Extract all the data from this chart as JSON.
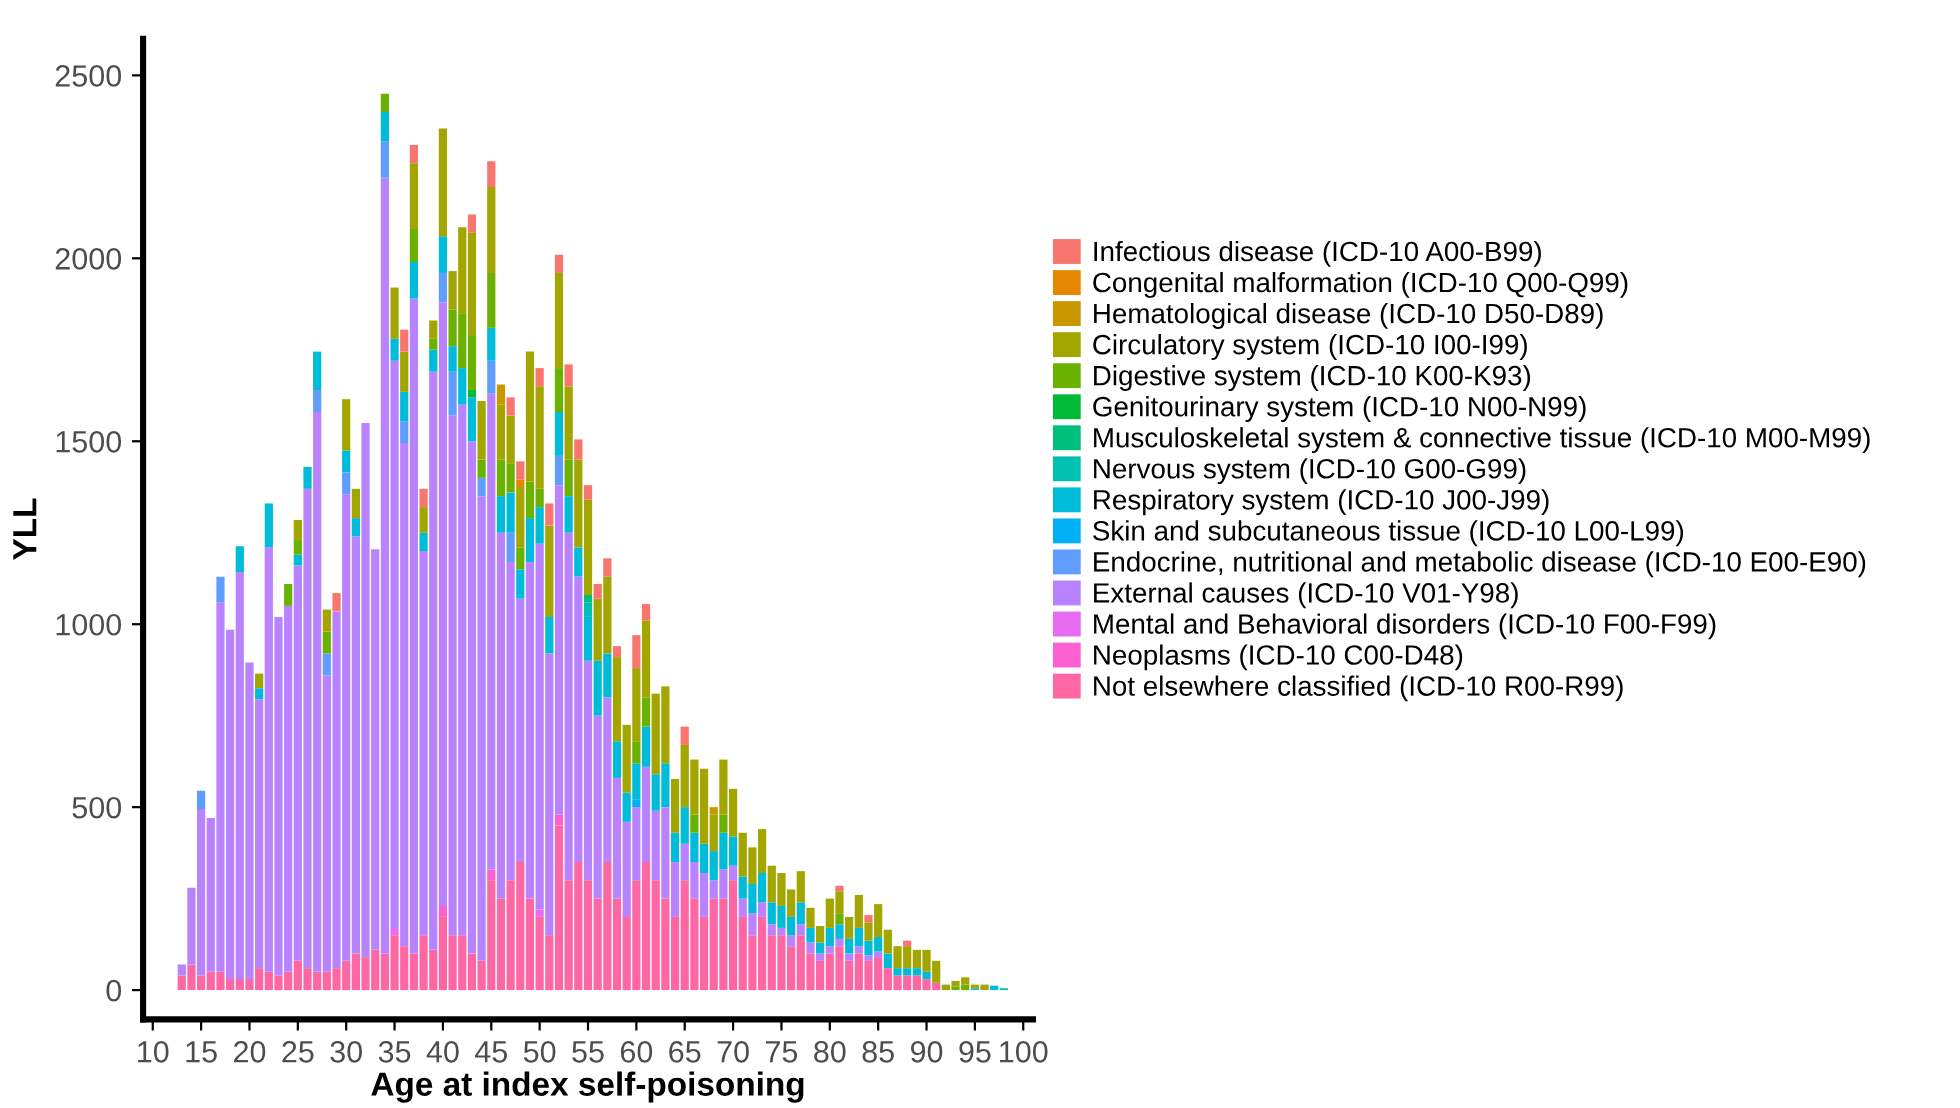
{
  "chart_data": {
    "type": "bar",
    "stacked": true,
    "xlabel": "Age at index self-poisoning",
    "ylabel": "YLL",
    "x": [
      13,
      14,
      15,
      16,
      17,
      18,
      19,
      20,
      21,
      22,
      23,
      24,
      25,
      26,
      27,
      28,
      29,
      30,
      31,
      32,
      33,
      34,
      35,
      36,
      37,
      38,
      39,
      40,
      41,
      42,
      43,
      44,
      45,
      46,
      47,
      48,
      49,
      50,
      51,
      52,
      53,
      54,
      55,
      56,
      57,
      58,
      59,
      60,
      61,
      62,
      63,
      64,
      65,
      66,
      67,
      68,
      69,
      70,
      71,
      72,
      73,
      74,
      75,
      76,
      77,
      78,
      79,
      80,
      81,
      82,
      83,
      84,
      85,
      86,
      87,
      88,
      89,
      90,
      91,
      92,
      93,
      94,
      95,
      96,
      97,
      98
    ],
    "xlim": [
      9,
      101
    ],
    "xticks": [
      10,
      15,
      20,
      25,
      30,
      35,
      40,
      45,
      50,
      55,
      60,
      65,
      70,
      75,
      80,
      85,
      90,
      95,
      100
    ],
    "ylim": [
      -80,
      2600
    ],
    "yticks": [
      0,
      500,
      1000,
      1500,
      2000,
      2500
    ],
    "grid": false,
    "legend": "right",
    "series": [
      {
        "name": "Not elsewhere classified (ICD-10 R00-R99)",
        "color": "#ff67a4",
        "values": [
          40,
          70,
          40,
          50,
          50,
          30,
          30,
          30,
          60,
          50,
          40,
          50,
          80,
          60,
          50,
          50,
          60,
          80,
          100,
          90,
          110,
          100,
          150,
          120,
          100,
          150,
          110,
          200,
          150,
          150,
          100,
          80,
          300,
          250,
          300,
          350,
          250,
          200,
          150,
          450,
          300,
          350,
          300,
          250,
          350,
          250,
          200,
          300,
          350,
          300,
          250,
          200,
          300,
          250,
          200,
          250,
          250,
          300,
          200,
          150,
          200,
          150,
          150,
          120,
          150,
          100,
          80,
          100,
          120,
          80,
          100,
          80,
          90,
          60,
          40,
          40,
          40,
          30,
          20,
          0,
          0,
          0,
          0,
          0,
          0,
          0
        ]
      },
      {
        "name": "Neoplasms (ICD-10 C00-D48)",
        "color": "#fd61d1",
        "values": [
          0,
          0,
          0,
          0,
          0,
          0,
          0,
          0,
          0,
          0,
          0,
          0,
          0,
          0,
          0,
          0,
          0,
          0,
          0,
          0,
          0,
          0,
          0,
          0,
          0,
          0,
          0,
          30,
          0,
          0,
          0,
          0,
          30,
          0,
          0,
          0,
          0,
          0,
          0,
          30,
          0,
          0,
          0,
          0,
          0,
          0,
          0,
          0,
          0,
          0,
          0,
          0,
          0,
          0,
          0,
          0,
          0,
          0,
          0,
          0,
          0,
          0,
          0,
          0,
          0,
          0,
          0,
          0,
          0,
          0,
          0,
          0,
          0,
          0,
          0,
          0,
          0,
          0,
          0,
          0,
          0,
          0,
          0,
          0,
          0,
          0
        ]
      },
      {
        "name": "Mental and Behavioral disorders (ICD-10 F00-F99)",
        "color": "#e76bf3",
        "values": [
          0,
          0,
          0,
          0,
          0,
          0,
          0,
          0,
          0,
          0,
          0,
          0,
          0,
          0,
          0,
          0,
          0,
          0,
          0,
          0,
          0,
          0,
          20,
          0,
          0,
          0,
          0,
          0,
          0,
          0,
          0,
          0,
          0,
          0,
          0,
          0,
          0,
          20,
          0,
          0,
          0,
          0,
          0,
          0,
          0,
          0,
          0,
          0,
          0,
          0,
          0,
          0,
          0,
          0,
          0,
          0,
          0,
          0,
          0,
          0,
          0,
          0,
          0,
          0,
          0,
          0,
          0,
          0,
          0,
          0,
          0,
          0,
          0,
          0,
          0,
          0,
          0,
          0,
          0,
          0,
          0,
          0,
          0,
          0,
          0,
          0
        ]
      },
      {
        "name": "External causes (ICD-10 V01-Y98)",
        "color": "#b983ff",
        "values": [
          30,
          210,
          455,
          420,
          1010,
          955,
          1113,
          865,
          735,
          1160,
          980,
          1000,
          1080,
          1310,
          1530,
          810,
          975,
          1275,
          1140,
          1460,
          1095,
          2120,
          1550,
          1375,
          1790,
          1050,
          1580,
          1650,
          1420,
          1450,
          1400,
          1270,
          1300,
          1000,
          870,
          720,
          920,
          1000,
          770,
          900,
          950,
          780,
          600,
          500,
          450,
          330,
          260,
          200,
          260,
          190,
          250,
          150,
          100,
          100,
          120,
          50,
          80,
          40,
          50,
          60,
          40,
          30,
          20,
          30,
          30,
          30,
          20,
          20,
          20,
          20,
          20,
          15,
          15,
          0,
          0,
          0,
          0,
          0,
          0,
          0,
          0,
          0,
          0,
          0,
          0,
          0
        ]
      },
      {
        "name": "Endocrine, nutritional and metabolic disease (ICD-10 E00-E90)",
        "color": "#619cff",
        "values": [
          0,
          0,
          50,
          0,
          70,
          0,
          0,
          0,
          0,
          0,
          0,
          0,
          0,
          0,
          60,
          60,
          0,
          60,
          0,
          0,
          0,
          100,
          0,
          60,
          0,
          0,
          0,
          80,
          120,
          0,
          0,
          50,
          90,
          0,
          80,
          0,
          0,
          0,
          0,
          80,
          0,
          0,
          0,
          0,
          0,
          0,
          0,
          0,
          0,
          0,
          0,
          0,
          0,
          0,
          0,
          0,
          0,
          0,
          0,
          0,
          0,
          0,
          0,
          0,
          0,
          0,
          0,
          0,
          0,
          0,
          0,
          0,
          0,
          0,
          0,
          0,
          0,
          0,
          0,
          0,
          0,
          0,
          0,
          0,
          0,
          0
        ]
      },
      {
        "name": "Skin and subcutaneous tissue (ICD-10 L00-L99)",
        "color": "#00b0f6",
        "values": [
          0,
          0,
          0,
          0,
          0,
          0,
          0,
          0,
          0,
          0,
          0,
          0,
          0,
          0,
          0,
          0,
          0,
          0,
          0,
          0,
          0,
          0,
          0,
          0,
          0,
          0,
          0,
          0,
          0,
          0,
          0,
          0,
          0,
          0,
          0,
          0,
          0,
          0,
          0,
          0,
          0,
          0,
          0,
          0,
          0,
          0,
          0,
          20,
          0,
          0,
          0,
          0,
          0,
          0,
          0,
          0,
          0,
          0,
          0,
          0,
          0,
          0,
          0,
          0,
          0,
          0,
          0,
          0,
          0,
          0,
          0,
          0,
          0,
          0,
          0,
          0,
          0,
          0,
          0,
          0,
          0,
          0,
          0,
          0,
          0,
          0
        ]
      },
      {
        "name": "Respiratory system (ICD-10 J00-J99)",
        "color": "#00bcd8",
        "values": [
          0,
          0,
          0,
          0,
          0,
          0,
          70,
          0,
          30,
          120,
          0,
          0,
          30,
          60,
          105,
          0,
          0,
          60,
          50,
          0,
          0,
          80,
          60,
          80,
          100,
          50,
          60,
          100,
          70,
          100,
          120,
          0,
          90,
          100,
          110,
          80,
          120,
          100,
          100,
          120,
          100,
          80,
          120,
          150,
          120,
          100,
          80,
          100,
          110,
          100,
          120,
          80,
          100,
          80,
          80,
          80,
          100,
          80,
          60,
          80,
          80,
          60,
          60,
          50,
          60,
          40,
          30,
          50,
          40,
          40,
          50,
          40,
          40,
          40,
          20,
          20,
          20,
          20,
          0,
          0,
          0,
          0,
          5,
          0,
          12,
          0
        ]
      },
      {
        "name": "Nervous system (ICD-10 G00-G99)",
        "color": "#00c0af",
        "values": [
          0,
          0,
          0,
          0,
          0,
          0,
          0,
          0,
          0,
          0,
          0,
          0,
          0,
          0,
          0,
          0,
          0,
          0,
          0,
          0,
          0,
          0,
          0,
          0,
          0,
          0,
          0,
          0,
          0,
          0,
          0,
          0,
          0,
          0,
          0,
          0,
          0,
          0,
          0,
          0,
          0,
          0,
          40,
          0,
          0,
          0,
          0,
          0,
          0,
          0,
          0,
          0,
          0,
          0,
          0,
          0,
          0,
          0,
          0,
          0,
          0,
          0,
          0,
          0,
          0,
          0,
          0,
          0,
          0,
          0,
          0,
          0,
          0,
          0,
          0,
          0,
          0,
          0,
          0,
          0,
          0,
          0,
          0,
          0,
          0,
          5
        ]
      },
      {
        "name": "Musculoskeletal system & connective tissue (ICD-10 M00-M99)",
        "color": "#00bf7d",
        "values": [
          0,
          0,
          0,
          0,
          0,
          0,
          0,
          0,
          0,
          0,
          0,
          0,
          0,
          0,
          0,
          0,
          0,
          0,
          0,
          0,
          0,
          0,
          0,
          0,
          0,
          0,
          0,
          0,
          0,
          0,
          0,
          0,
          0,
          0,
          0,
          0,
          0,
          0,
          0,
          0,
          0,
          0,
          20,
          0,
          0,
          0,
          0,
          0,
          0,
          0,
          0,
          0,
          0,
          0,
          0,
          0,
          0,
          0,
          0,
          0,
          0,
          0,
          0,
          0,
          0,
          0,
          0,
          0,
          0,
          0,
          0,
          0,
          0,
          0,
          0,
          0,
          0,
          0,
          0,
          0,
          0,
          0,
          0,
          0,
          0,
          0
        ]
      },
      {
        "name": "Genitourinary system (ICD-10 N00-N99)",
        "color": "#00ba38",
        "values": [
          0,
          0,
          0,
          0,
          0,
          0,
          0,
          0,
          0,
          0,
          0,
          0,
          0,
          0,
          0,
          0,
          0,
          0,
          0,
          0,
          0,
          0,
          0,
          0,
          0,
          0,
          0,
          0,
          0,
          0,
          20,
          0,
          0,
          0,
          0,
          0,
          0,
          0,
          0,
          0,
          0,
          0,
          0,
          0,
          0,
          0,
          0,
          0,
          0,
          0,
          0,
          0,
          0,
          0,
          0,
          0,
          0,
          0,
          0,
          0,
          0,
          0,
          0,
          0,
          0,
          0,
          0,
          0,
          0,
          0,
          0,
          0,
          0,
          0,
          0,
          0,
          0,
          0,
          0,
          0,
          0,
          0,
          0,
          0,
          0,
          0
        ]
      },
      {
        "name": "Digestive system (ICD-10 K00-K93)",
        "color": "#6bb100",
        "values": [
          0,
          0,
          0,
          0,
          0,
          0,
          0,
          0,
          0,
          0,
          0,
          60,
          40,
          0,
          0,
          60,
          0,
          0,
          0,
          0,
          0,
          50,
          0,
          0,
          90,
          0,
          30,
          0,
          100,
          150,
          150,
          50,
          150,
          100,
          80,
          60,
          100,
          50,
          0,
          120,
          100,
          0,
          0,
          0,
          0,
          0,
          0,
          60,
          80,
          0,
          0,
          0,
          0,
          50,
          0,
          0,
          50,
          0,
          0,
          0,
          0,
          0,
          0,
          0,
          0,
          0,
          0,
          0,
          30,
          0,
          0,
          0,
          0,
          0,
          0,
          0,
          0,
          0,
          0,
          0,
          10,
          15,
          0,
          0,
          0,
          0
        ]
      },
      {
        "name": "Circulatory system (ICD-10 I00-I99)",
        "color": "#a3a500",
        "values": [
          0,
          0,
          0,
          0,
          0,
          0,
          0,
          0,
          40,
          0,
          0,
          0,
          55,
          0,
          0,
          60,
          0,
          140,
          80,
          0,
          0,
          0,
          140,
          110,
          180,
          70,
          50,
          295,
          105,
          235,
          280,
          160,
          235,
          150,
          130,
          165,
          355,
          280,
          250,
          260,
          200,
          240,
          260,
          170,
          210,
          230,
          185,
          200,
          210,
          220,
          210,
          147,
          170,
          150,
          205,
          100,
          150,
          130,
          120,
          100,
          120,
          100,
          90,
          75,
          85,
          55,
          45,
          80,
          60,
          60,
          90,
          50,
          90,
          65,
          60,
          60,
          50,
          60,
          60,
          15,
          15,
          20,
          10,
          15,
          0,
          0
        ]
      },
      {
        "name": "Hematological disease (ICD-10 D50-D89)",
        "color": "#c99800",
        "values": [
          0,
          0,
          0,
          0,
          0,
          0,
          0,
          0,
          0,
          0,
          0,
          0,
          0,
          0,
          0,
          0,
          0,
          0,
          0,
          0,
          0,
          0,
          0,
          0,
          0,
          0,
          0,
          0,
          0,
          0,
          0,
          0,
          0,
          55,
          0,
          0,
          0,
          0,
          0,
          0,
          0,
          0,
          0,
          0,
          0,
          0,
          0,
          0,
          0,
          0,
          0,
          0,
          0,
          0,
          0,
          20,
          0,
          0,
          0,
          0,
          0,
          0,
          0,
          0,
          0,
          0,
          0,
          0,
          0,
          0,
          0,
          0,
          0,
          0,
          0,
          0,
          0,
          0,
          0,
          0,
          0,
          0,
          0,
          0,
          0,
          0
        ]
      },
      {
        "name": "Congenital malformation (ICD-10 Q00-Q99)",
        "color": "#e58700",
        "values": [
          0,
          0,
          0,
          0,
          0,
          0,
          0,
          0,
          0,
          0,
          0,
          0,
          0,
          0,
          0,
          0,
          0,
          0,
          0,
          0,
          0,
          0,
          0,
          0,
          0,
          0,
          0,
          0,
          0,
          0,
          0,
          0,
          0,
          0,
          0,
          20,
          0,
          0,
          0,
          0,
          0,
          0,
          0,
          0,
          0,
          0,
          0,
          0,
          0,
          0,
          0,
          0,
          0,
          0,
          0,
          0,
          0,
          0,
          0,
          0,
          0,
          0,
          0,
          0,
          0,
          0,
          0,
          0,
          0,
          0,
          0,
          0,
          0,
          0,
          0,
          0,
          0,
          0,
          0,
          0,
          0,
          0,
          0,
          0,
          0,
          0
        ]
      },
      {
        "name": "Infectious disease (ICD-10 A00-B99)",
        "color": "#f8766d",
        "values": [
          0,
          0,
          0,
          0,
          0,
          0,
          0,
          0,
          0,
          0,
          0,
          0,
          0,
          0,
          0,
          0,
          50,
          0,
          0,
          0,
          0,
          0,
          0,
          60,
          50,
          50,
          0,
          0,
          0,
          0,
          50,
          0,
          70,
          0,
          50,
          50,
          0,
          50,
          60,
          50,
          60,
          55,
          40,
          40,
          50,
          30,
          0,
          90,
          45,
          0,
          0,
          0,
          50,
          0,
          0,
          0,
          0,
          0,
          0,
          0,
          0,
          0,
          0,
          0,
          0,
          0,
          0,
          0,
          15,
          0,
          0,
          20,
          0,
          0,
          0,
          15,
          0,
          0,
          0,
          0,
          0,
          0,
          0,
          0,
          0,
          0
        ]
      }
    ]
  }
}
